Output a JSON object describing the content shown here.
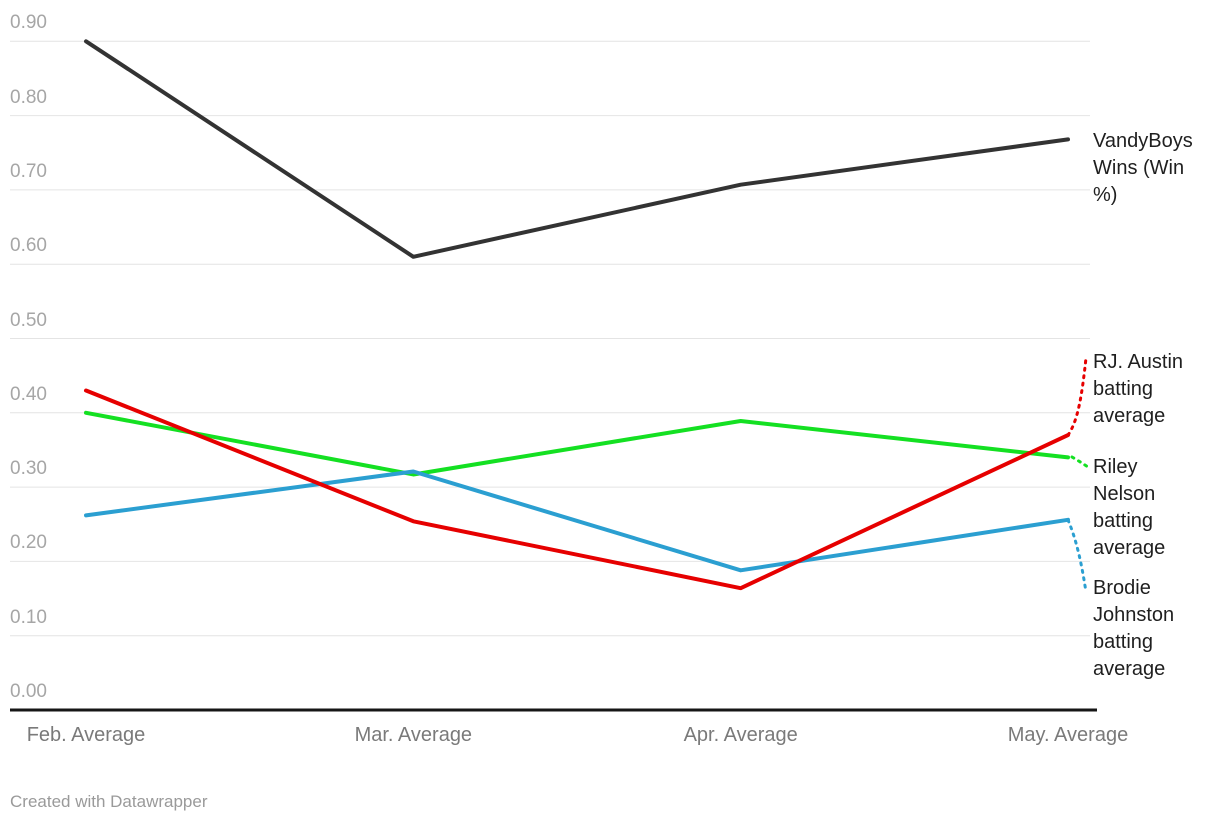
{
  "chart_data": {
    "type": "line",
    "title": "",
    "xlabel": "",
    "ylabel": "",
    "categories": [
      "Feb. Average",
      "Mar. Average",
      "Apr. Average",
      "May. Average"
    ],
    "series": [
      {
        "name": "VandyBoys Wins (Win %)",
        "label_lines": [
          "VandyBoys",
          "Wins (Win",
          "%)"
        ],
        "color": "#333333",
        "values": [
          0.9,
          0.61,
          0.707,
          0.768
        ]
      },
      {
        "name": "RJ. Austin batting average",
        "label_lines": [
          "RJ. Austin",
          "batting",
          "average"
        ],
        "color": "#e60000",
        "values": [
          0.43,
          0.254,
          0.164,
          0.37
        ]
      },
      {
        "name": "Riley Nelson batting average",
        "label_lines": [
          "Riley",
          "Nelson",
          "batting",
          "average"
        ],
        "color": "#14e022",
        "values": [
          0.4,
          0.317,
          0.389,
          0.34
        ]
      },
      {
        "name": "Brodie Johnston batting average",
        "label_lines": [
          "Brodie",
          "Johnston",
          "batting",
          "average"
        ],
        "color": "#2b9fd1",
        "values": [
          0.262,
          0.321,
          0.188,
          0.256
        ]
      }
    ],
    "y_ticks": [
      "0.00",
      "0.10",
      "0.20",
      "0.30",
      "0.40",
      "0.50",
      "0.60",
      "0.70",
      "0.80",
      "0.90"
    ],
    "ylim": [
      0.0,
      0.9
    ],
    "grid": true,
    "grid_color": "#e4e4e4",
    "axis_color": "#161616",
    "legend_position": "right"
  },
  "footer": {
    "attribution": "Created with Datawrapper"
  }
}
